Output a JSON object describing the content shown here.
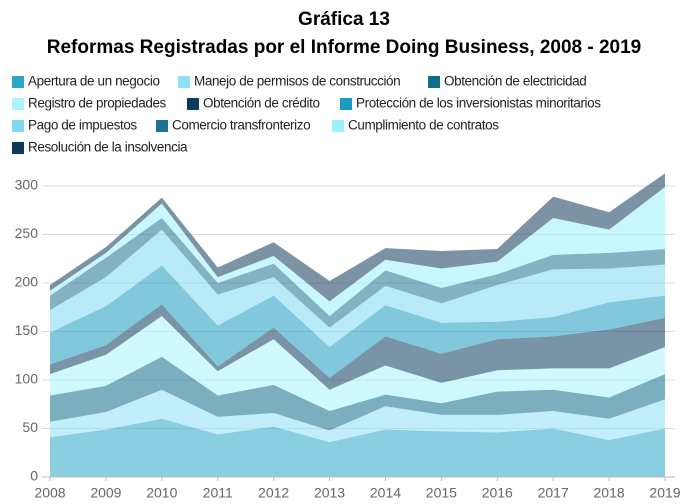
{
  "chart_data": {
    "type": "stacked_area",
    "title": "Gráfica 13",
    "subtitle": "Reformas Registradas por el Informe Doing Business, 2008 - 2019",
    "x": [
      2008,
      2009,
      2010,
      2011,
      2012,
      2013,
      2014,
      2015,
      2016,
      2017,
      2018,
      2019
    ],
    "xlim": [
      2008,
      2019
    ],
    "xticks": [
      2008,
      2009,
      2010,
      2011,
      2012,
      2013,
      2014,
      2015,
      2016,
      2017,
      2018,
      2019
    ],
    "ylim": [
      0,
      320
    ],
    "yticks": [
      0,
      50,
      100,
      150,
      200,
      250,
      300
    ],
    "grid": true,
    "series": [
      {
        "name": "Apertura de un negocio",
        "color": "#2aa7c9",
        "values": [
          41,
          49,
          60,
          44,
          52,
          36,
          49,
          47,
          46,
          50,
          38,
          50
        ]
      },
      {
        "name": "Manejo de permisos de construcción",
        "color": "#8fdff5",
        "values": [
          16,
          18,
          30,
          18,
          14,
          12,
          24,
          17,
          18,
          18,
          22,
          30
        ]
      },
      {
        "name": "Obtención de electricidad",
        "color": "#0f6e8a",
        "values": [
          27,
          27,
          34,
          22,
          29,
          20,
          12,
          12,
          24,
          22,
          22,
          26
        ]
      },
      {
        "name": "Registro de propiedades",
        "color": "#a9f3ff",
        "values": [
          22,
          32,
          42,
          25,
          47,
          22,
          30,
          21,
          22,
          22,
          30,
          28
        ]
      },
      {
        "name": "Obtención de crédito",
        "color": "#0b3d5e",
        "values": [
          10,
          10,
          12,
          5,
          12,
          12,
          30,
          30,
          32,
          33,
          40,
          30
        ]
      },
      {
        "name": "Protección de los inversionistas minoritarios",
        "color": "#1b9bc0",
        "values": [
          33,
          40,
          40,
          42,
          33,
          32,
          32,
          32,
          18,
          20,
          28,
          23
        ]
      },
      {
        "name": "Pago de impuestos",
        "color": "#7fd8f0",
        "values": [
          23,
          30,
          37,
          32,
          19,
          20,
          20,
          20,
          38,
          49,
          35,
          32
        ]
      },
      {
        "name": "Comercio transfronterizo",
        "color": "#1f7390",
        "values": [
          15,
          20,
          12,
          12,
          14,
          12,
          16,
          16,
          11,
          15,
          16,
          16
        ]
      },
      {
        "name": "Cumplimiento de contratos",
        "color": "#9cf0ff",
        "values": [
          5,
          5,
          15,
          6,
          8,
          15,
          11,
          20,
          13,
          38,
          24,
          64
        ]
      },
      {
        "name": "Resolución de la insolvencia",
        "color": "#0e3a5a",
        "values": [
          6,
          6,
          6,
          10,
          14,
          21,
          12,
          18,
          13,
          22,
          18,
          14
        ]
      }
    ]
  }
}
